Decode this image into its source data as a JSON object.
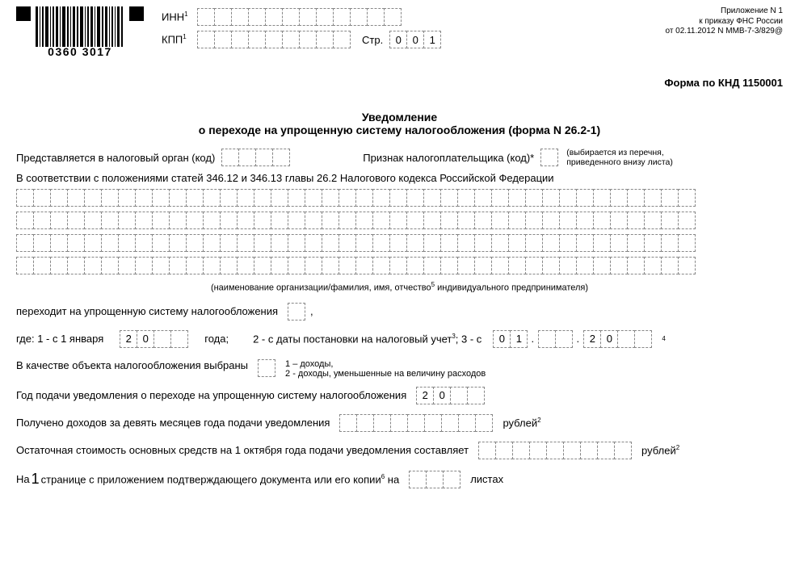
{
  "barcode_number": "0360 3017",
  "labels": {
    "inn": "ИНН",
    "kpp": "КПП",
    "stranitsa": "Стр."
  },
  "page_number": [
    "0",
    "0",
    "1"
  ],
  "approval": {
    "l1": "Приложение N 1",
    "l2": "к приказу ФНС России",
    "l3": "от 02.11.2012 N ММВ-7-3/829@"
  },
  "knd": "Форма по КНД 1150001",
  "title": {
    "l1": "Уведомление",
    "l2": "о переходе на упрощенную систему налогообложения (форма N 26.2-1)"
  },
  "row_submit": "Представляется в налоговый орган (код)",
  "row_sign": "Признак налогоплательщика (код)*",
  "sign_note": "(выбирается из перечня, приведенного внизу листа)",
  "accord_line": "В соответствии с положениями статей 346.12 и 346.13 главы 26.2 Налогового кодекса Российской Федерации",
  "org_caption": "(наименование организации/фамилия, имя, отчество",
  "org_caption2": " индивидуального предпринимателя)",
  "perehod": "переходит на упрощенную систему налогообложения",
  "gde": "где: 1 - с 1 января",
  "goda": "года;",
  "opt2": "2 - с даты постановки на налоговый учет",
  "opt3": "; 3 - с",
  "year_prefix": [
    "2",
    "0"
  ],
  "date_day": [
    "0",
    "1"
  ],
  "dot": ".",
  "date_year": [
    "2",
    "0"
  ],
  "object_line": "В качестве объекта налогообложения выбраны",
  "object_notes": {
    "l1": "1 – доходы,",
    "l2": "2 - доходы, уменьшенные на величину расходов"
  },
  "year_submit": "Год подачи уведомления о переходе на упрощенную систему налогообложения",
  "year_submit_val": [
    "2",
    "0"
  ],
  "income9m": "Получено доходов за девять месяцев года подачи уведомления",
  "rub": "рублей",
  "ost": "Остаточная стоимость основных средств на 1 октября года подачи уведомления составляет",
  "na_pre": "На",
  "one": "1",
  "na_post": "странице с приложением подтверждающего документа или его копии",
  "na_end": " на",
  "listah": "листах",
  "sup": {
    "one": "1",
    "two": "2",
    "three": "3",
    "four": "4",
    "five": "5",
    "six": "6"
  },
  "layout": {
    "grid_cells": 40,
    "inn_cells": 12,
    "kpp_cells": 9,
    "org_code_cells": 4,
    "income_cells": 9,
    "ost_cells": 9
  },
  "colors": {
    "border": "#888888",
    "text": "#000000",
    "background": "#ffffff"
  }
}
